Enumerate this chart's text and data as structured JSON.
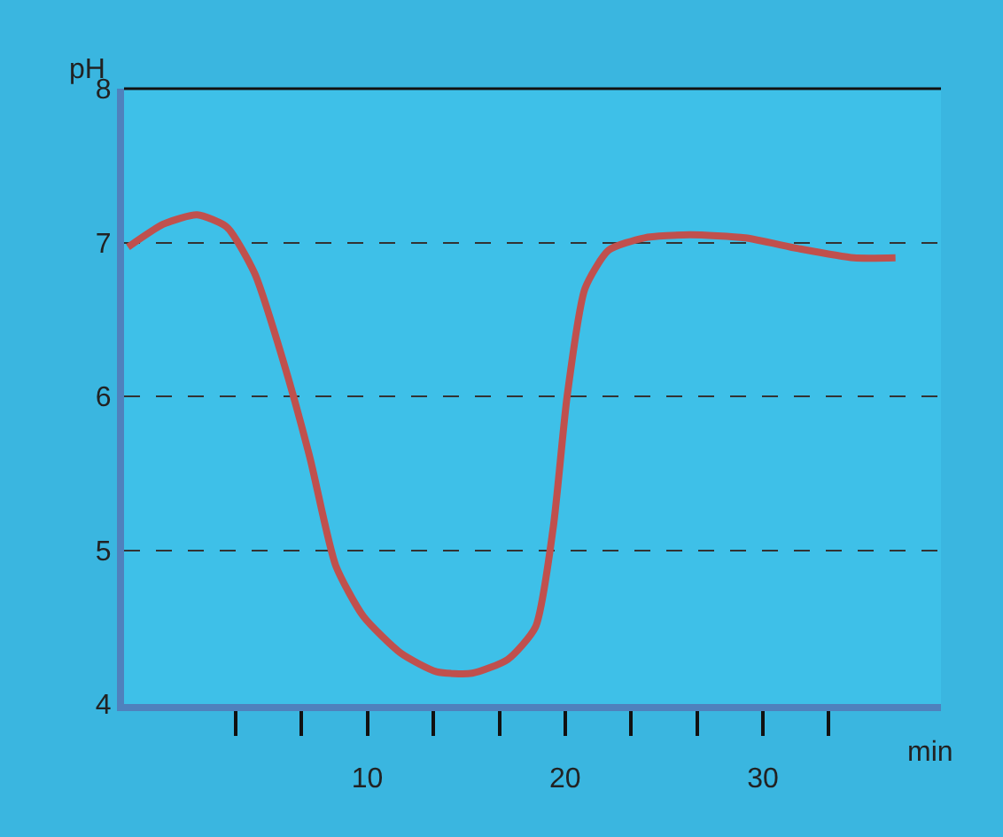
{
  "chart_data": {
    "type": "line",
    "xlabel": "min",
    "ylabel": "pH",
    "x": [
      -2.1,
      -0.3,
      1.4,
      2.9,
      4.3,
      5.7,
      7.1,
      8.4,
      9.8,
      11.7,
      13.5,
      15.3,
      17.1,
      18.5,
      19.4,
      20.1,
      21,
      22.2,
      24,
      26.3,
      29.1,
      31.8,
      34.6,
      36.7
    ],
    "series": [
      {
        "color": "#c0504d",
        "values": [
          6.97,
          7.12,
          7.18,
          7.1,
          6.8,
          6.25,
          5.6,
          4.9,
          4.57,
          4.33,
          4.21,
          4.2,
          4.29,
          4.5,
          5.15,
          6.0,
          6.7,
          6.95,
          7.03,
          7.05,
          7.03,
          6.96,
          6.9,
          6.9
        ]
      }
    ],
    "xlim": [
      -2.3,
      39
    ],
    "xticks": [
      {
        "value": 3.33,
        "label": null
      },
      {
        "value": 6.67,
        "label": null
      },
      10,
      {
        "value": 13.33,
        "label": null
      },
      {
        "value": 16.67,
        "label": null
      },
      20,
      {
        "value": 23.33,
        "label": null
      },
      {
        "value": 26.67,
        "label": null
      },
      30,
      {
        "value": 33.33,
        "label": null
      }
    ],
    "ylim": [
      4,
      8
    ],
    "yticks": [
      4,
      5,
      6,
      7,
      8
    ],
    "grid": "y",
    "line_style": "solid",
    "marker": "none"
  }
}
